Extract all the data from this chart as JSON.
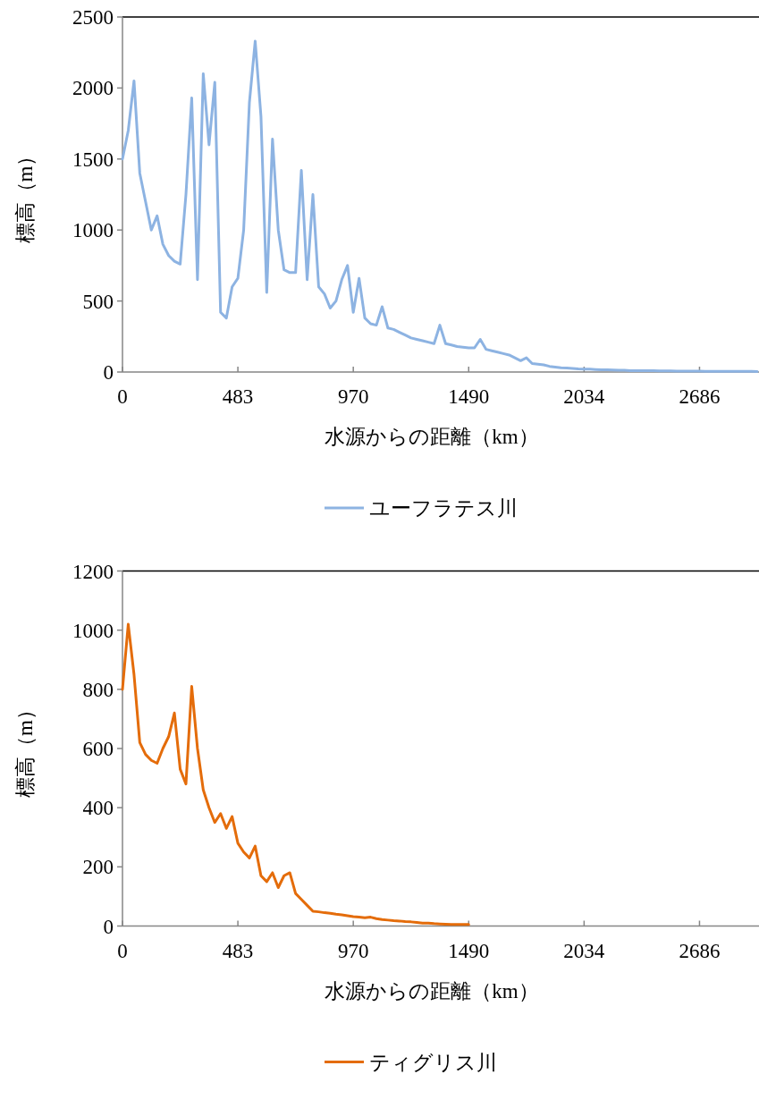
{
  "chart_data": [
    {
      "type": "line",
      "xlabel": "水源からの距離（km）",
      "ylabel": "標高（m）",
      "legend": "bottom",
      "categories": [
        "0",
        null,
        null,
        null,
        null,
        null,
        null,
        null,
        null,
        null,
        null,
        null,
        null,
        null,
        null,
        null,
        null,
        null,
        null,
        null,
        "483",
        null,
        null,
        null,
        null,
        null,
        null,
        null,
        null,
        null,
        null,
        null,
        null,
        null,
        null,
        null,
        null,
        null,
        null,
        null,
        "970",
        null,
        null,
        null,
        null,
        null,
        null,
        null,
        null,
        null,
        null,
        null,
        null,
        null,
        null,
        null,
        null,
        null,
        null,
        null,
        "1490",
        null,
        null,
        null,
        null,
        null,
        null,
        null,
        null,
        null,
        null,
        null,
        null,
        null,
        null,
        null,
        null,
        null,
        null,
        null,
        "2034",
        null,
        null,
        null,
        null,
        null,
        null,
        null,
        null,
        null,
        null,
        null,
        null,
        null,
        null,
        null,
        null,
        null,
        null,
        null,
        "2686",
        null,
        null,
        null,
        null,
        null,
        null,
        null,
        null,
        null,
        null
      ],
      "ylim": [
        0,
        2500
      ],
      "yticks": [
        0,
        500,
        1000,
        1500,
        2000,
        2500
      ],
      "series": [
        {
          "name": "ユーフラテス川",
          "color": "#8db3e2",
          "values": [
            1500,
            1700,
            2050,
            1400,
            1200,
            1000,
            1100,
            900,
            820,
            780,
            760,
            1250,
            1930,
            650,
            2100,
            1600,
            2040,
            420,
            380,
            600,
            660,
            1000,
            1900,
            2330,
            1800,
            560,
            1640,
            1000,
            720,
            700,
            700,
            1420,
            650,
            1250,
            600,
            550,
            450,
            500,
            650,
            750,
            420,
            660,
            380,
            340,
            330,
            460,
            310,
            300,
            280,
            260,
            240,
            230,
            220,
            210,
            200,
            330,
            200,
            190,
            180,
            175,
            170,
            170,
            230,
            160,
            150,
            140,
            130,
            120,
            100,
            80,
            100,
            60,
            55,
            50,
            40,
            35,
            30,
            28,
            25,
            22,
            20,
            20,
            18,
            15,
            15,
            14,
            12,
            12,
            10,
            10,
            10,
            9,
            9,
            8,
            8,
            8,
            7,
            7,
            6,
            6,
            6,
            5,
            5,
            5,
            5,
            4,
            4,
            4,
            4,
            4,
            3
          ]
        }
      ]
    },
    {
      "type": "line",
      "xlabel": "水源からの距離（km）",
      "ylabel": "標高（m）",
      "legend": "bottom",
      "categories": [
        "0",
        null,
        null,
        null,
        null,
        null,
        null,
        null,
        null,
        null,
        null,
        null,
        null,
        null,
        null,
        null,
        null,
        null,
        null,
        null,
        "483",
        null,
        null,
        null,
        null,
        null,
        null,
        null,
        null,
        null,
        null,
        null,
        null,
        null,
        null,
        null,
        null,
        null,
        null,
        null,
        "970",
        null,
        null,
        null,
        null,
        null,
        null,
        null,
        null,
        null,
        null,
        null,
        null,
        null,
        null,
        null,
        null,
        null,
        null,
        null,
        "1490",
        null,
        null,
        null,
        null,
        null,
        null,
        null,
        null,
        null,
        null,
        null,
        null,
        null,
        null,
        null,
        null,
        null,
        null,
        null,
        "2034",
        null,
        null,
        null,
        null,
        null,
        null,
        null,
        null,
        null,
        null,
        null,
        null,
        null,
        null,
        null,
        null,
        null,
        null,
        null,
        "2686",
        null,
        null,
        null,
        null,
        null,
        null,
        null,
        null,
        null,
        null
      ],
      "ylim": [
        0,
        1200
      ],
      "yticks": [
        0,
        200,
        400,
        600,
        800,
        1000,
        1200
      ],
      "series": [
        {
          "name": "ティグリス川",
          "color": "#e46c0a",
          "values": [
            800,
            1020,
            850,
            620,
            580,
            560,
            550,
            600,
            640,
            720,
            530,
            480,
            810,
            600,
            460,
            400,
            350,
            380,
            330,
            370,
            280,
            250,
            230,
            270,
            170,
            150,
            180,
            130,
            170,
            180,
            110,
            90,
            70,
            50,
            48,
            45,
            43,
            40,
            38,
            35,
            32,
            30,
            28,
            30,
            25,
            22,
            20,
            18,
            17,
            15,
            14,
            12,
            10,
            10,
            8,
            7,
            6,
            5,
            5,
            5,
            5,
            null,
            null,
            null,
            null,
            null,
            null,
            null,
            null,
            null,
            null,
            null,
            null,
            null,
            null,
            null,
            null,
            null,
            null,
            null,
            null,
            null,
            null,
            null,
            null,
            null,
            null,
            null,
            null,
            null,
            null,
            null,
            null,
            null,
            null,
            null,
            null,
            null,
            null,
            null,
            null,
            null,
            null,
            null,
            null,
            null,
            null,
            null,
            null,
            null,
            null
          ]
        }
      ]
    }
  ]
}
